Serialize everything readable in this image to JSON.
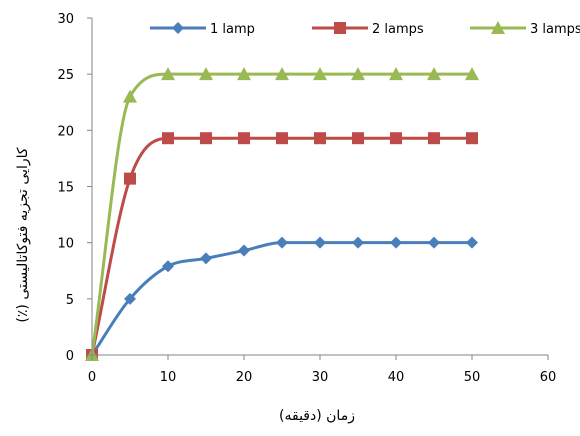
{
  "chart_data": {
    "type": "line",
    "title": "",
    "xlabel": "زمان (دقیقه)",
    "ylabel": "کارایی تجزیه فتوکاتالیستی (٪)",
    "xlim": [
      0,
      60
    ],
    "ylim": [
      0,
      30
    ],
    "xticks": [
      0,
      10,
      20,
      30,
      40,
      50,
      60
    ],
    "yticks": [
      0,
      5,
      10,
      15,
      20,
      25,
      30
    ],
    "grid": false,
    "legend_position": "top",
    "x": [
      0,
      5,
      10,
      15,
      20,
      25,
      30,
      35,
      40,
      45,
      50
    ],
    "series": [
      {
        "name": "1 lamp",
        "color": "#4a7ebb",
        "marker": "diamond",
        "values": [
          0,
          5.0,
          7.9,
          8.6,
          9.3,
          10.0,
          10.0,
          10.0,
          10.0,
          10.0,
          10.0
        ]
      },
      {
        "name": "2 lamps",
        "color": "#be4b48",
        "marker": "square",
        "values": [
          0,
          15.7,
          19.3,
          19.3,
          19.3,
          19.3,
          19.3,
          19.3,
          19.3,
          19.3,
          19.3
        ]
      },
      {
        "name": "3 lamps",
        "color": "#98b954",
        "marker": "triangle",
        "values": [
          0,
          23.0,
          25.0,
          25.0,
          25.0,
          25.0,
          25.0,
          25.0,
          25.0,
          25.0,
          25.0
        ]
      }
    ]
  }
}
